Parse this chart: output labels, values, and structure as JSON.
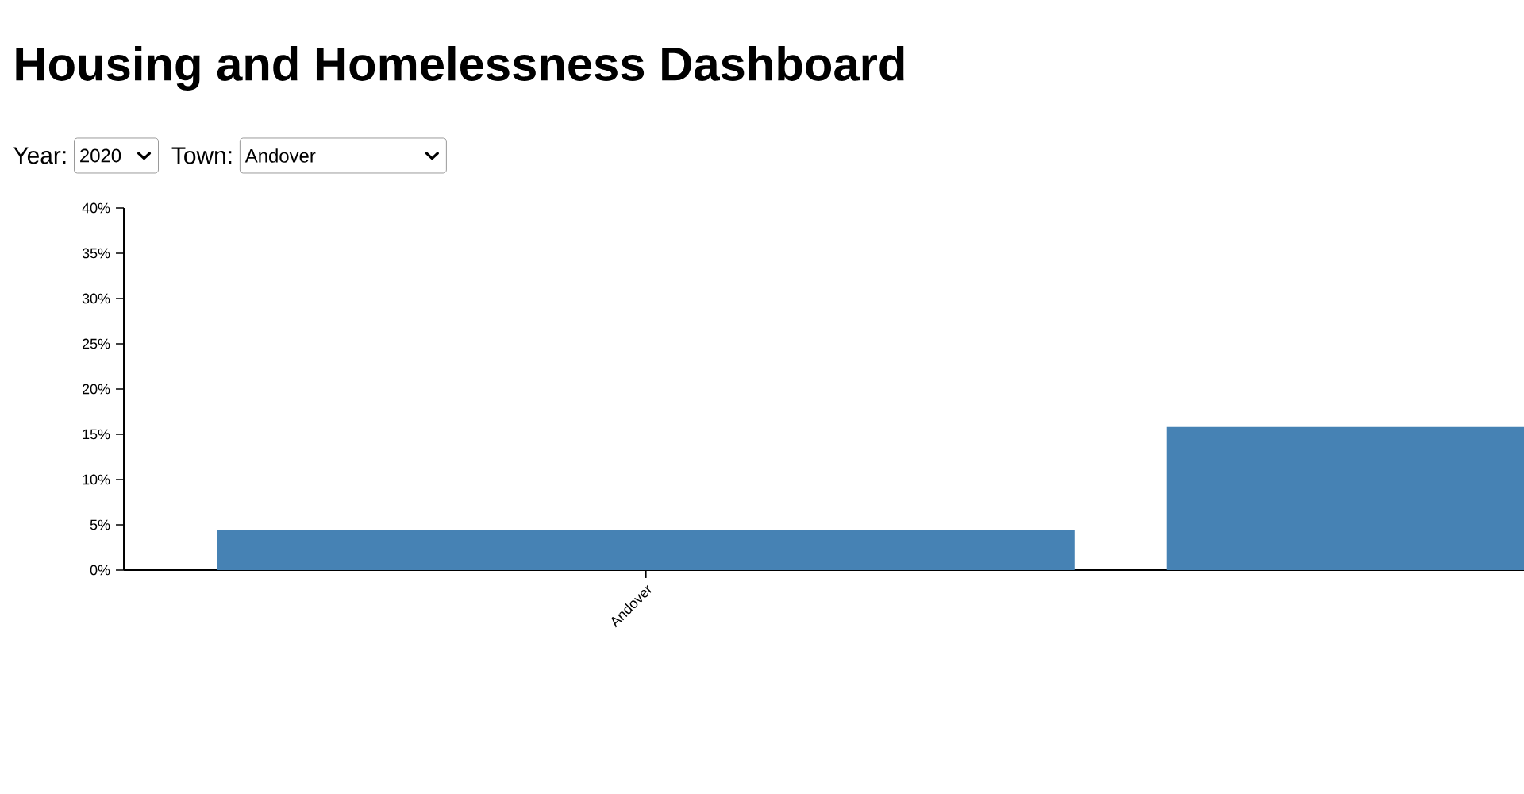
{
  "chart_data": {
    "type": "bar",
    "title": "Housing and Homelessness Dashboard",
    "annotations": [
      "Year:",
      "2020",
      "Town:",
      "Andover"
    ],
    "categories": [
      "Andover",
      null
    ],
    "values": [
      4.4,
      15.8
    ],
    "color": "#4682b4",
    "ylim": [
      0,
      40
    ],
    "yticks": [
      {
        "value": 0,
        "label": "0%"
      },
      {
        "value": 5,
        "label": "5%"
      },
      {
        "value": 10,
        "label": "10%"
      },
      {
        "value": 15,
        "label": "15%"
      },
      {
        "value": 20,
        "label": "20%"
      },
      {
        "value": 25,
        "label": "25%"
      },
      {
        "value": 30,
        "label": "30%"
      },
      {
        "value": 35,
        "label": "35%"
      },
      {
        "value": 40,
        "label": "40%"
      }
    ]
  }
}
